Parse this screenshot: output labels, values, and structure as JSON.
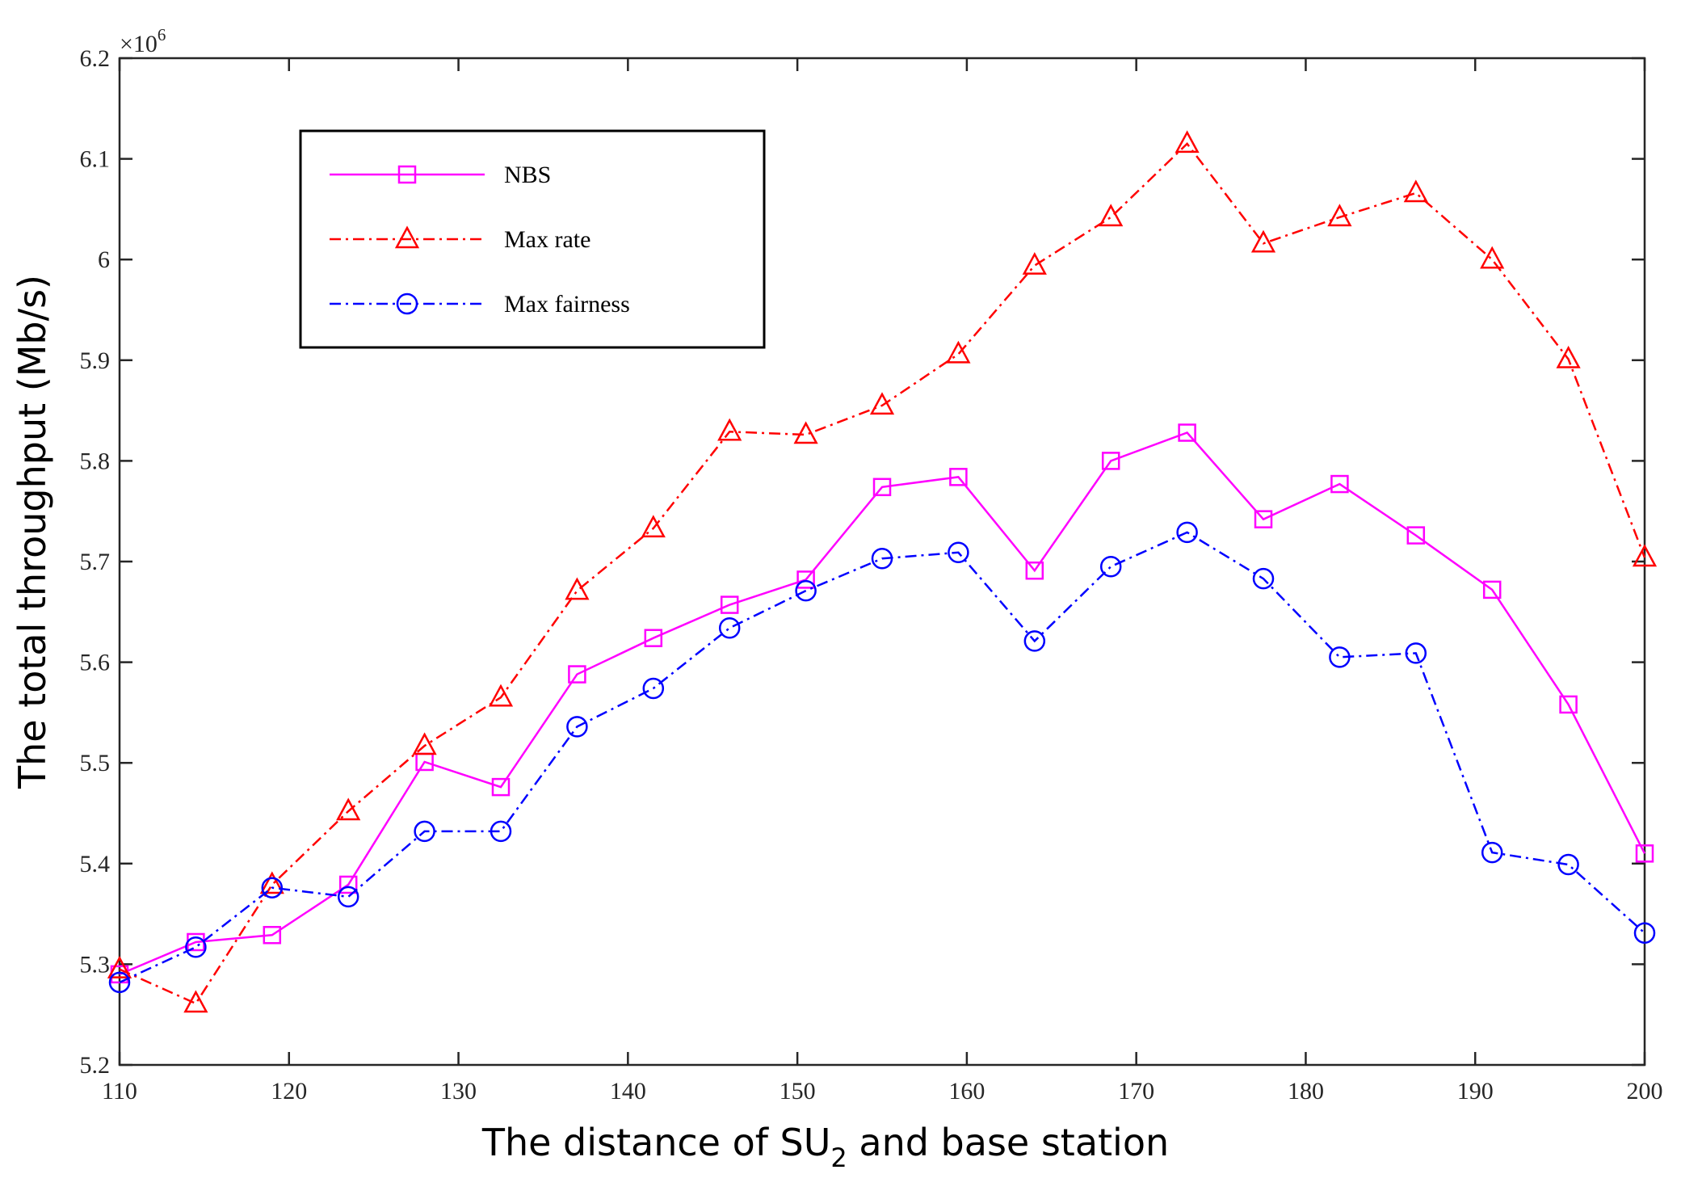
{
  "chart_data": {
    "type": "line",
    "title": "",
    "xlabel": "The distance of SU",
    "xlabel_subscript": "2",
    "xlabel_suffix": " and base station",
    "ylabel": "The total throughput (Mb/s)",
    "y_multiplier_base": "×10",
    "y_multiplier_exp": "6",
    "xlim": [
      110,
      200
    ],
    "ylim": [
      5.2,
      6.2
    ],
    "x_ticks": [
      110,
      120,
      130,
      140,
      150,
      160,
      170,
      180,
      190,
      200
    ],
    "x_tick_labels": [
      "110",
      "120",
      "130",
      "140",
      "150",
      "160",
      "170",
      "180",
      "190",
      "200"
    ],
    "y_ticks": [
      5.2,
      5.3,
      5.4,
      5.5,
      5.6,
      5.7,
      5.8,
      5.9,
      6.0,
      6.1,
      6.2
    ],
    "y_tick_labels": [
      "5.2",
      "5.3",
      "5.4",
      "5.5",
      "5.6",
      "5.7",
      "5.8",
      "5.9",
      "6",
      "6.1",
      "6.2"
    ],
    "grid": false,
    "legend_position": "top-left",
    "x": [
      110,
      114.5,
      119,
      123.5,
      128,
      132.5,
      137,
      141.5,
      146,
      150.5,
      155,
      159.5,
      164,
      168.5,
      173,
      177.5,
      182,
      186.5,
      191,
      195.5,
      200
    ],
    "series": [
      {
        "name": "NBS",
        "color": "#ff00ff",
        "line_style": "solid",
        "marker": "square",
        "values": [
          5.29,
          5.322,
          5.329,
          5.379,
          5.501,
          5.476,
          5.588,
          5.624,
          5.657,
          5.682,
          5.774,
          5.784,
          5.691,
          5.8,
          5.828,
          5.742,
          5.777,
          5.726,
          5.672,
          5.558,
          5.41
        ]
      },
      {
        "name": "Max rate",
        "color": "#ff0000",
        "line_style": "dash-dot",
        "marker": "triangle",
        "values": [
          5.295,
          5.261,
          5.379,
          5.452,
          5.517,
          5.565,
          5.671,
          5.733,
          5.829,
          5.826,
          5.855,
          5.906,
          5.994,
          6.042,
          6.115,
          6.016,
          6.042,
          6.066,
          6.0,
          5.901,
          5.704
        ]
      },
      {
        "name": "Max fairness",
        "color": "#0000ff",
        "line_style": "dash-dot",
        "marker": "circle",
        "values": [
          5.282,
          5.317,
          5.376,
          5.367,
          5.432,
          5.432,
          5.536,
          5.574,
          5.634,
          5.671,
          5.703,
          5.709,
          5.621,
          5.695,
          5.729,
          5.683,
          5.605,
          5.609,
          5.411,
          5.399,
          5.331
        ]
      }
    ]
  }
}
